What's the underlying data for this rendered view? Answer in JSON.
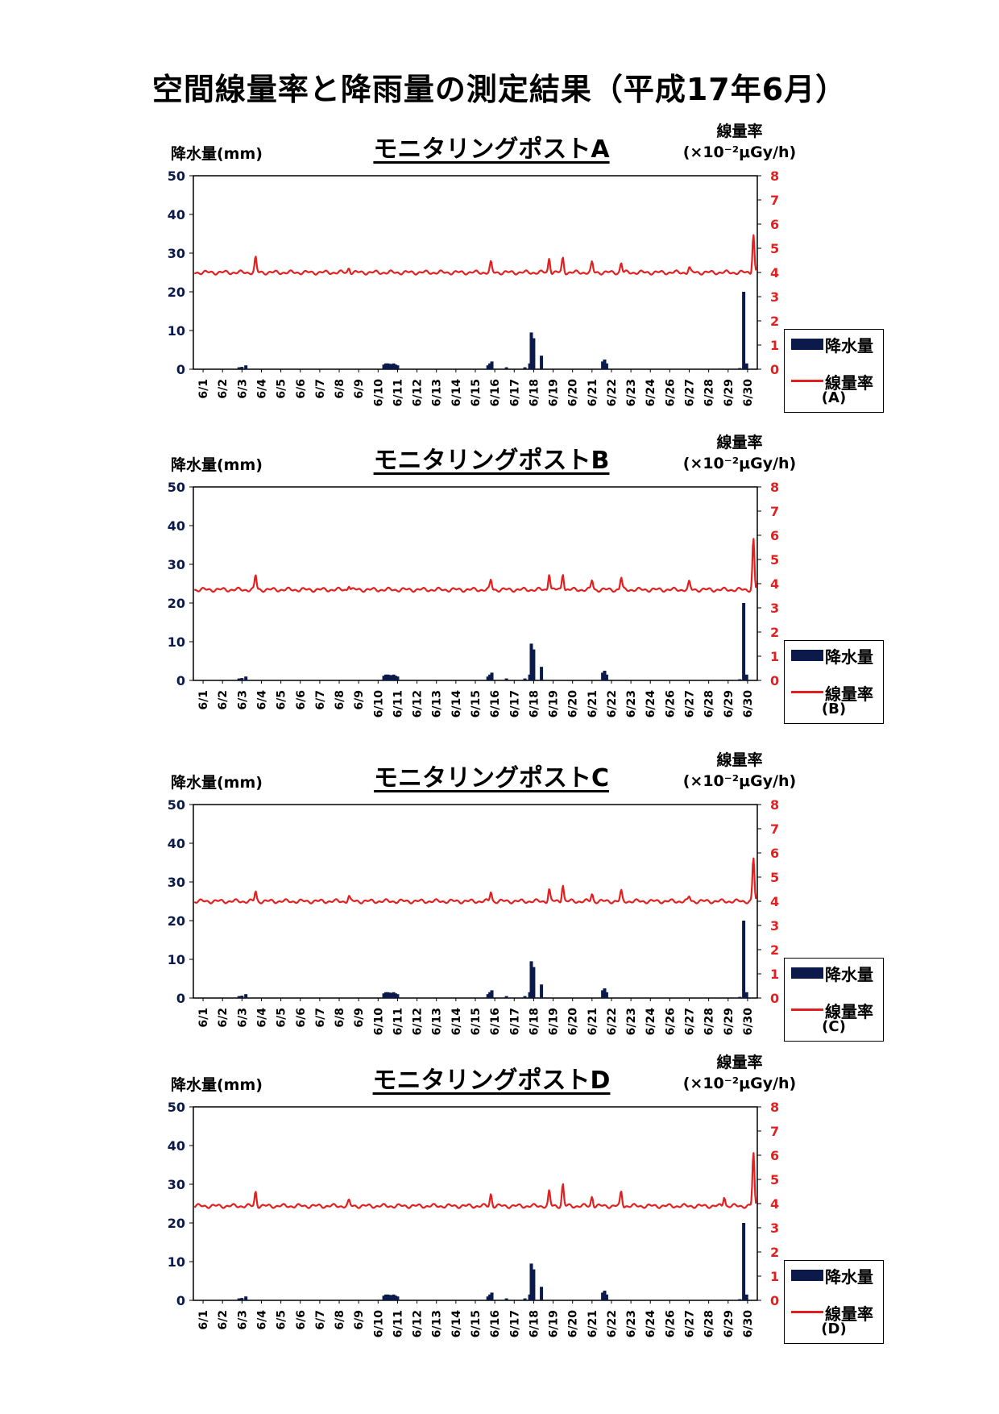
{
  "page": {
    "title": "空間線量率と降雨量の測定結果（平成17年6月）"
  },
  "colors": {
    "rain_bar": "#0b1a4a",
    "dose_line": "#e32020",
    "left_axis_text": "#0b1a4a",
    "right_axis_text": "#e32020"
  },
  "chart_data": [
    {
      "type": "bar+line",
      "title": "モニタリングポストA",
      "ylabel": "降水量(mm)",
      "y2label_top": "線量率",
      "y2label_unit": "(×10⁻²μGy/h)",
      "ylim": [
        0,
        50
      ],
      "y2lim": [
        0,
        8
      ],
      "legend": {
        "rain": "降水量",
        "dose": "線量率",
        "site": "(A)"
      },
      "dose_baseline": 4.0,
      "dose_peaks": [
        [
          2.7,
          0.6
        ],
        [
          7.5,
          0.2
        ],
        [
          14.8,
          0.4
        ],
        [
          17.8,
          0.6
        ],
        [
          18.5,
          0.6
        ],
        [
          20.0,
          0.4
        ],
        [
          21.5,
          0.4
        ],
        [
          25.0,
          0.2
        ],
        [
          28.3,
          1.6
        ]
      ]
    },
    {
      "type": "bar+line",
      "title": "モニタリングポストB",
      "ylabel": "降水量(mm)",
      "y2label_top": "線量率",
      "y2label_unit": "(×10⁻²μGy/h)",
      "ylim": [
        0,
        50
      ],
      "y2lim": [
        0,
        8
      ],
      "legend": {
        "rain": "降水量",
        "dose": "線量率",
        "site": "(B)"
      },
      "dose_baseline": 3.75,
      "dose_peaks": [
        [
          2.7,
          0.6
        ],
        [
          7.5,
          0.2
        ],
        [
          14.8,
          0.4
        ],
        [
          17.8,
          0.7
        ],
        [
          18.5,
          0.7
        ],
        [
          20.0,
          0.4
        ],
        [
          21.5,
          0.5
        ],
        [
          25.0,
          0.3
        ],
        [
          28.3,
          2.1
        ]
      ]
    },
    {
      "type": "bar+line",
      "title": "モニタリングポストC",
      "ylabel": "降水量(mm)",
      "y2label_top": "線量率",
      "y2label_unit": "(×10⁻²μGy/h)",
      "ylim": [
        0,
        50
      ],
      "y2lim": [
        0,
        8
      ],
      "legend": {
        "rain": "降水量",
        "dose": "線量率",
        "site": "(C)"
      },
      "dose_baseline": 4.0,
      "dose_peaks": [
        [
          2.7,
          0.4
        ],
        [
          7.5,
          0.2
        ],
        [
          14.8,
          0.4
        ],
        [
          17.8,
          0.5
        ],
        [
          18.5,
          0.7
        ],
        [
          20.0,
          0.3
        ],
        [
          21.5,
          0.4
        ],
        [
          25.0,
          0.2
        ],
        [
          28.3,
          1.8
        ]
      ]
    },
    {
      "type": "bar+line",
      "title": "モニタリングポストD",
      "ylabel": "降水量(mm)",
      "y2label_top": "線量率",
      "y2label_unit": "(×10⁻²μGy/h)",
      "ylim": [
        0,
        50
      ],
      "y2lim": [
        0,
        8
      ],
      "legend": {
        "rain": "降水量",
        "dose": "線量率",
        "site": "(D)"
      },
      "dose_baseline": 3.9,
      "dose_peaks": [
        [
          2.7,
          0.6
        ],
        [
          7.5,
          0.2
        ],
        [
          14.8,
          0.5
        ],
        [
          17.8,
          0.6
        ],
        [
          18.5,
          0.9
        ],
        [
          20.0,
          0.4
        ],
        [
          21.5,
          0.6
        ],
        [
          26.8,
          0.4
        ],
        [
          28.3,
          2.2
        ]
      ]
    }
  ],
  "shared": {
    "categories": [
      "6/1",
      "6/2",
      "6/3",
      "6/4",
      "6/5",
      "6/6",
      "6/7",
      "6/8",
      "6/9",
      "6/10",
      "6/11",
      "6/12",
      "6/13",
      "6/14",
      "6/15",
      "6/16",
      "6/17",
      "6/18",
      "6/19",
      "6/20",
      "6/21",
      "6/22",
      "6/23",
      "6/24",
      "6/26",
      "6/27",
      "6/28",
      "6/29",
      "6/30"
    ],
    "rain_x": [
      1.85,
      2.0,
      2.2,
      9.3,
      9.4,
      9.5,
      9.6,
      9.7,
      9.8,
      9.9,
      10.0,
      14.65,
      14.75,
      14.85,
      15.6,
      16.55,
      16.8,
      16.88,
      17.0,
      17.4,
      20.55,
      20.65,
      20.75,
      27.6,
      27.8,
      27.95
    ],
    "rain_mm": [
      0.5,
      0.6,
      1.0,
      1.2,
      1.5,
      1.5,
      1.4,
      1.3,
      1.5,
      1.2,
      1.0,
      1.0,
      1.5,
      2.0,
      0.5,
      0.5,
      1.5,
      9.5,
      8.0,
      3.5,
      2.0,
      2.5,
      1.5,
      0.3,
      20.0,
      1.5
    ],
    "left_ticks": [
      "0",
      "10",
      "20",
      "30",
      "40",
      "50"
    ],
    "right_ticks": [
      "0",
      "1",
      "2",
      "3",
      "4",
      "5",
      "6",
      "7",
      "8"
    ]
  }
}
